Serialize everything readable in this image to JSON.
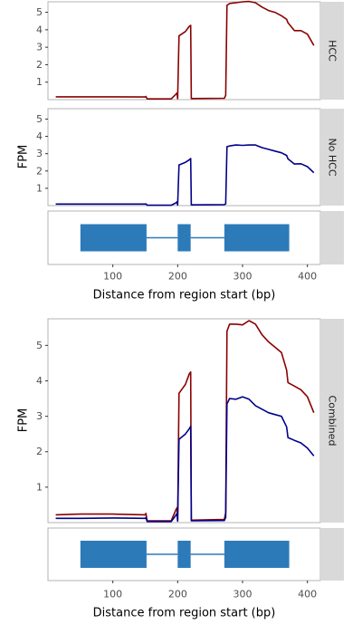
{
  "chart_data": [
    {
      "type": "line",
      "title": "",
      "xlabel": "Distance from region start (bp)",
      "ylabel": "FPM",
      "xlim": [
        0,
        420
      ],
      "x_ticks": [
        100,
        200,
        300,
        400
      ],
      "y_ticks": [
        1,
        2,
        3,
        4,
        5
      ],
      "grid": false,
      "legend": "none",
      "panels": [
        {
          "strip": "HCC",
          "ylim": [
            0,
            5.6
          ],
          "series": [
            {
              "color": "#8b0000",
              "x": [
                12,
                50,
                100,
                150,
                151,
                153,
                190,
                197,
                199,
                200,
                202,
                212,
                218,
                220,
                221,
                272,
                274,
                276,
                280,
                290,
                300,
                310,
                320,
                330,
                340,
                350,
                360,
                368,
                370,
                380,
                390,
                400,
                410
              ],
              "y": [
                0.16,
                0.16,
                0.16,
                0.15,
                0.18,
                0.04,
                0.04,
                0.3,
                0.38,
                0.05,
                3.65,
                3.9,
                4.2,
                4.25,
                0.06,
                0.08,
                0.25,
                5.4,
                5.5,
                5.55,
                5.6,
                5.62,
                5.55,
                5.3,
                5.1,
                5.0,
                4.8,
                4.6,
                4.4,
                3.95,
                3.95,
                3.75,
                3.1
              ]
            }
          ]
        },
        {
          "strip": "No HCC",
          "ylim": [
            0,
            5.6
          ],
          "series": [
            {
              "color": "#00008b",
              "x": [
                12,
                50,
                100,
                150,
                151,
                153,
                190,
                197,
                199,
                200,
                202,
                212,
                218,
                220,
                221,
                272,
                274,
                276,
                280,
                290,
                300,
                310,
                320,
                330,
                340,
                350,
                360,
                368,
                370,
                380,
                390,
                400,
                410
              ],
              "y": [
                0.09,
                0.09,
                0.09,
                0.09,
                0.1,
                0.02,
                0.02,
                0.15,
                0.22,
                0.03,
                2.35,
                2.5,
                2.65,
                2.72,
                0.04,
                0.06,
                0.1,
                3.4,
                3.45,
                3.5,
                3.48,
                3.5,
                3.5,
                3.35,
                3.25,
                3.15,
                3.05,
                2.9,
                2.7,
                2.4,
                2.42,
                2.25,
                1.9
              ]
            }
          ]
        }
      ],
      "gene_model": {
        "exons": [
          [
            50,
            152
          ],
          [
            200,
            220
          ],
          [
            272,
            372
          ]
        ],
        "color": "#2d7ab9"
      }
    },
    {
      "type": "line",
      "title": "",
      "xlabel": "Distance from region start (bp)",
      "ylabel": "FPM",
      "xlim": [
        0,
        420
      ],
      "ylim": [
        0,
        5.75
      ],
      "x_ticks": [
        100,
        200,
        300,
        400
      ],
      "y_ticks": [
        1,
        2,
        3,
        4,
        5
      ],
      "grid": false,
      "legend": "none",
      "panels": [
        {
          "strip": "Combined",
          "series": [
            {
              "color": "#8b0000",
              "x": [
                12,
                50,
                100,
                150,
                151,
                153,
                190,
                197,
                199,
                200,
                202,
                212,
                218,
                220,
                221,
                272,
                274,
                276,
                280,
                290,
                300,
                310,
                320,
                330,
                340,
                350,
                360,
                368,
                370,
                380,
                390,
                400,
                410
              ],
              "y": [
                0.22,
                0.24,
                0.24,
                0.22,
                0.26,
                0.05,
                0.05,
                0.35,
                0.42,
                0.06,
                3.65,
                3.9,
                4.2,
                4.25,
                0.07,
                0.09,
                0.28,
                5.4,
                5.6,
                5.6,
                5.58,
                5.7,
                5.6,
                5.3,
                5.1,
                4.95,
                4.8,
                4.3,
                3.95,
                3.85,
                3.75,
                3.55,
                3.1
              ]
            },
            {
              "color": "#00008b",
              "x": [
                12,
                50,
                100,
                150,
                151,
                153,
                190,
                197,
                199,
                200,
                202,
                212,
                218,
                220,
                221,
                272,
                274,
                276,
                280,
                290,
                300,
                310,
                320,
                330,
                340,
                350,
                360,
                368,
                370,
                380,
                390,
                400,
                410
              ],
              "y": [
                0.12,
                0.12,
                0.13,
                0.12,
                0.14,
                0.03,
                0.03,
                0.2,
                0.26,
                0.04,
                2.35,
                2.5,
                2.65,
                2.72,
                0.05,
                0.06,
                0.15,
                3.35,
                3.5,
                3.48,
                3.55,
                3.48,
                3.3,
                3.2,
                3.1,
                3.05,
                3.0,
                2.7,
                2.4,
                2.32,
                2.25,
                2.1,
                1.88
              ]
            }
          ]
        }
      ],
      "gene_model": {
        "exons": [
          [
            50,
            152
          ],
          [
            200,
            220
          ],
          [
            272,
            372
          ]
        ],
        "color": "#2d7ab9"
      }
    }
  ]
}
